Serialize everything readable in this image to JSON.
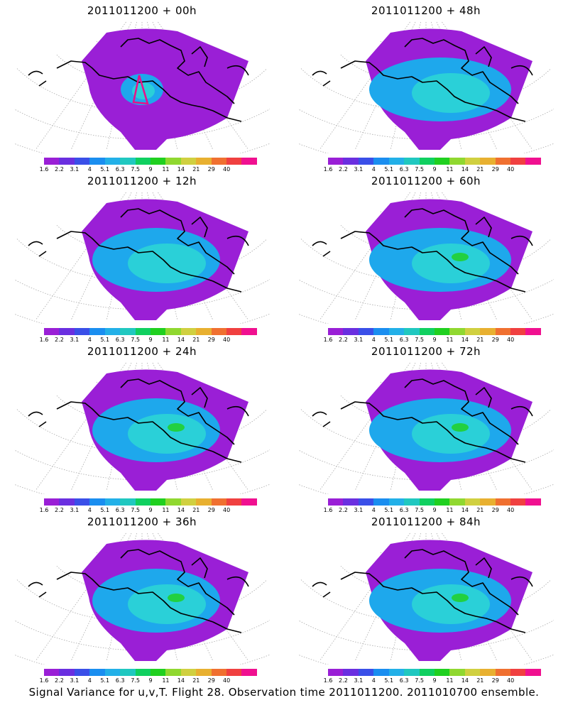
{
  "panels": [
    {
      "title": "2011011200 + 00h"
    },
    {
      "title": "2011011200 + 48h"
    },
    {
      "title": "2011011200 + 12h"
    },
    {
      "title": "2011011200 + 60h"
    },
    {
      "title": "2011011200 + 24h"
    },
    {
      "title": "2011011200 + 72h"
    },
    {
      "title": "2011011200 + 36h"
    },
    {
      "title": "2011011200 + 84h"
    }
  ],
  "colorbar": {
    "labels": [
      "1.6",
      "2.2",
      "3.1",
      "4",
      "5.1",
      "6.3",
      "7.5",
      "9",
      "11",
      "14",
      "21",
      "29",
      "40"
    ],
    "colors": [
      "#9a1fd6",
      "#6a2fe0",
      "#3a4fe8",
      "#1a8ef0",
      "#22b0e8",
      "#20c8c0",
      "#10d060",
      "#20d020",
      "#90d830",
      "#d0d040",
      "#e8b030",
      "#f07030",
      "#f04040",
      "#f01090"
    ]
  },
  "colors": {
    "field_light": "#2ad0d8",
    "field_mid": "#1ea8ec",
    "field_low": "#9a1fd6",
    "field_high": "#22d040",
    "track": "#e8108a"
  },
  "footer": "Signal Variance for u,v,T. Flight 28. Observation time 2011011200. 2011010700 ensemble."
}
